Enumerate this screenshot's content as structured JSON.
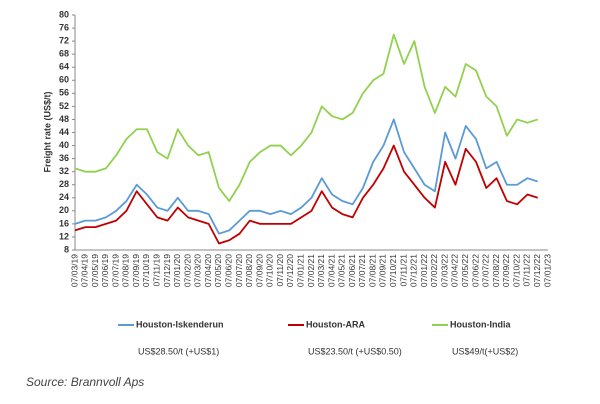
{
  "chart_data": {
    "type": "line",
    "ylabel": "Freight rate (US$/t)",
    "categories": [
      "07/03/19",
      "07/04/19",
      "07/05/19",
      "07/06/19",
      "07/07/19",
      "07/08/19",
      "07/09/19",
      "07/10/19",
      "07/11/19",
      "07/12/19",
      "07/01/20",
      "07/02/20",
      "07/03/20",
      "07/04/20",
      "07/05/20",
      "07/06/20",
      "07/07/20",
      "07/08/20",
      "07/09/20",
      "07/10/20",
      "07/11/20",
      "07/12/20",
      "07/01/21",
      "07/02/21",
      "07/03/21",
      "07/04/21",
      "07/05/21",
      "07/06/21",
      "07/07/21",
      "07/08/21",
      "07/09/21",
      "07/10/21",
      "07/11/21",
      "07/12/21",
      "07/01/22",
      "07/02/22",
      "07/03/22",
      "07/04/22",
      "07/05/22",
      "07/06/22",
      "07/07/22",
      "07/08/22",
      "07/09/22",
      "07/10/22",
      "07/11/22",
      "07/12/22",
      "07/01/23"
    ],
    "series": [
      {
        "name": "Houston-Iskenderun",
        "note": "US$28.50/t (+US$1)",
        "color": "#5b9bd5",
        "values": [
          16,
          17,
          17,
          18,
          20,
          23,
          28,
          25,
          21,
          20,
          24,
          20,
          20,
          19,
          13,
          14,
          17,
          20,
          20,
          19,
          20,
          19,
          21,
          24,
          30,
          25,
          23,
          22,
          27,
          35,
          40,
          48,
          38,
          33,
          28,
          26,
          44,
          36,
          46,
          42,
          33,
          35,
          28,
          28,
          30,
          29,
          null
        ]
      },
      {
        "name": "Houston-ARA",
        "note": "US$23.50/t (+US$0.50)",
        "color": "#c00000",
        "values": [
          14,
          15,
          15,
          16,
          17,
          20,
          26,
          22,
          18,
          17,
          21,
          18,
          17,
          16,
          10,
          11,
          13,
          17,
          16,
          16,
          16,
          16,
          18,
          20,
          26,
          21,
          19,
          18,
          24,
          28,
          33,
          40,
          32,
          28,
          24,
          21,
          35,
          28,
          39,
          35,
          27,
          30,
          23,
          22,
          25,
          24,
          null
        ]
      },
      {
        "name": "Houston-India",
        "note": "US$49/t(+US$2)",
        "color": "#92d050",
        "values": [
          33,
          32,
          32,
          33,
          37,
          42,
          45,
          45,
          38,
          36,
          45,
          40,
          37,
          38,
          27,
          23,
          28,
          35,
          38,
          40,
          40,
          37,
          40,
          44,
          52,
          49,
          48,
          50,
          56,
          60,
          62,
          74,
          65,
          72,
          58,
          50,
          58,
          55,
          65,
          63,
          55,
          52,
          43,
          48,
          47,
          48,
          null
        ]
      }
    ],
    "ylim": [
      8,
      80
    ],
    "yticks": [
      8,
      12,
      16,
      20,
      24,
      28,
      32,
      36,
      40,
      44,
      48,
      52,
      56,
      60,
      64,
      68,
      72,
      76,
      80
    ],
    "source": "Source: Brannvoll Aps"
  }
}
